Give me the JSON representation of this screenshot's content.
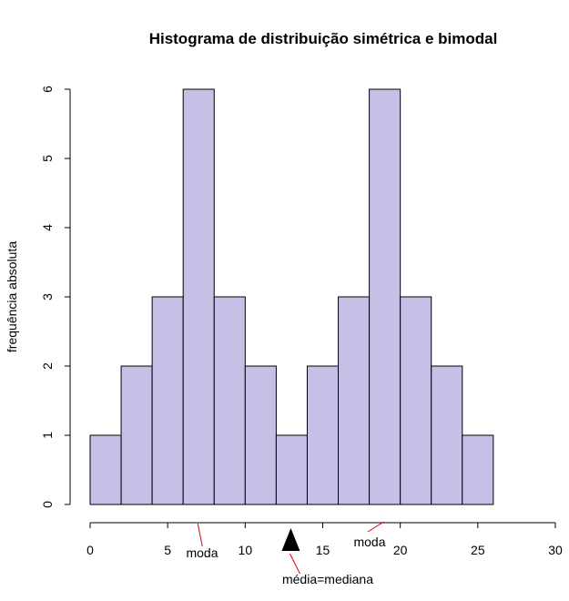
{
  "chart_data": {
    "type": "bar",
    "title": "Histograma de distribuição simétrica e bimodal",
    "xlabel": "",
    "ylabel": "frequência absoluta",
    "bin_edges": [
      0,
      2,
      4,
      6,
      8,
      10,
      12,
      14,
      16,
      18,
      20,
      22,
      24,
      26
    ],
    "values": [
      1,
      2,
      3,
      6,
      3,
      2,
      1,
      2,
      3,
      6,
      3,
      2,
      1
    ],
    "xlim": [
      0,
      30
    ],
    "ylim": [
      0,
      6
    ],
    "x_ticks": [
      "0",
      "5",
      "10",
      "15",
      "20",
      "25",
      "30"
    ],
    "y_ticks": [
      "0",
      "1",
      "2",
      "3",
      "4",
      "5",
      "6"
    ],
    "grid": false,
    "bar_color": "#c6bfe6",
    "annotations": [
      {
        "text": "moda",
        "x": 7,
        "color": "#dd0000"
      },
      {
        "text": "moda",
        "x": 19,
        "color": "#dd0000"
      },
      {
        "text": "média=mediana",
        "x": 13,
        "marker": "triangle",
        "color": "#dd0000"
      }
    ]
  }
}
